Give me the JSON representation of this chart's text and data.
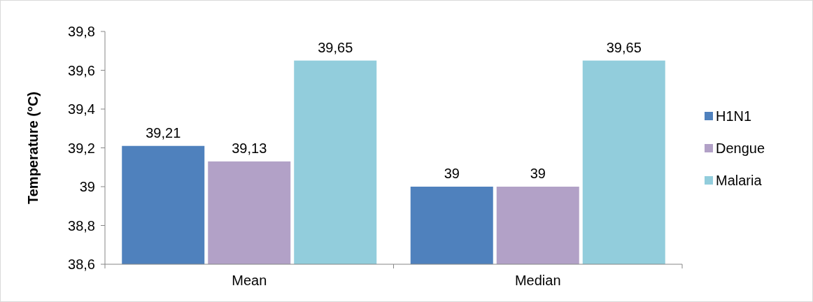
{
  "chart_data": {
    "type": "bar",
    "ylabel": "Temperature (°C)",
    "categories": [
      "Mean",
      "Median"
    ],
    "series": [
      {
        "name": "H1N1",
        "color": "#4f81bd",
        "values": [
          39.21,
          39
        ],
        "value_labels": [
          "39,21",
          "39"
        ]
      },
      {
        "name": "Dengue",
        "color": "#b2a1c7",
        "values": [
          39.13,
          39
        ],
        "value_labels": [
          "39,13",
          "39"
        ]
      },
      {
        "name": "Malaria",
        "color": "#92cddc",
        "values": [
          39.65,
          39.65
        ],
        "value_labels": [
          "39,65",
          "39,65"
        ]
      }
    ],
    "ylim": [
      38.6,
      39.8
    ],
    "yticks": [
      {
        "value": 38.6,
        "label": "38,6"
      },
      {
        "value": 38.8,
        "label": "38,8"
      },
      {
        "value": 39,
        "label": "39"
      },
      {
        "value": 39.2,
        "label": "39,2"
      },
      {
        "value": 39.4,
        "label": "39,4"
      },
      {
        "value": 39.6,
        "label": "39,6"
      },
      {
        "value": 39.8,
        "label": "39,8"
      }
    ],
    "grid": false,
    "legend": "right"
  }
}
